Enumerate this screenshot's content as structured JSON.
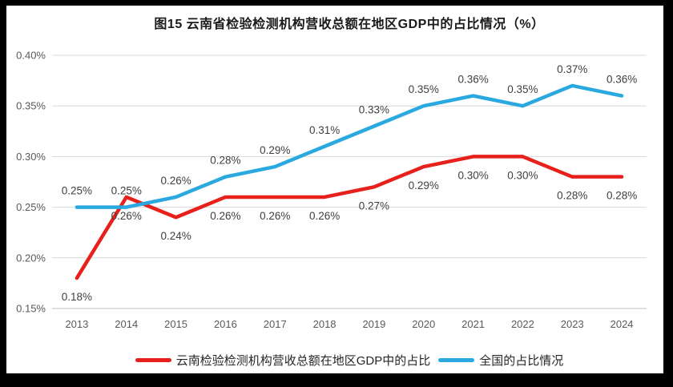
{
  "window": {
    "frame_color": "#000000",
    "panel_color": "#ffffff"
  },
  "title": "图15 云南省检验检测机构营收总额在地区GDP中的占比情况（%）",
  "chart_data": {
    "type": "line",
    "title": "图15 云南省检验检测机构营收总额在地区GDP中的占比情况（%）",
    "categories": [
      "2013",
      "2014",
      "2015",
      "2016",
      "2017",
      "2018",
      "2019",
      "2020",
      "2021",
      "2022",
      "2023",
      "2024"
    ],
    "series": [
      {
        "name": "云南检验检测机构营收总额在地区GDP中的占比",
        "color": "#e8201c",
        "values": [
          0.18,
          0.26,
          0.24,
          0.26,
          0.26,
          0.26,
          0.27,
          0.29,
          0.3,
          0.3,
          0.28,
          0.28
        ],
        "point_labels": [
          "0.18%",
          "0.26%",
          "0.24%",
          "0.26%",
          "0.26%",
          "0.26%",
          "0.27%",
          "0.29%",
          "0.30%",
          "0.30%",
          "0.28%",
          "0.28%"
        ],
        "label_position": "below"
      },
      {
        "name": "全国的占比情况",
        "color": "#2aa9e0",
        "values": [
          0.25,
          0.25,
          0.26,
          0.28,
          0.29,
          0.31,
          0.33,
          0.35,
          0.36,
          0.35,
          0.37,
          0.36
        ],
        "point_labels": [
          "0.25%",
          "0.25%",
          "0.26%",
          "0.28%",
          "0.29%",
          "0.31%",
          "0.33%",
          "0.35%",
          "0.36%",
          "0.35%",
          "0.37%",
          "0.36%"
        ],
        "label_position": "above"
      }
    ],
    "y_ticks": [
      "0.15%",
      "0.20%",
      "0.25%",
      "0.30%",
      "0.35%",
      "0.40%"
    ],
    "ylim": [
      0.15,
      0.4
    ],
    "xlabel": "",
    "ylabel": "",
    "grid": true,
    "legend_position": "bottom",
    "colors": {
      "gridline": "#d9d9d9",
      "axis_line": "#bfbfbf",
      "tick_label": "#595959",
      "data_label": "#404040"
    }
  }
}
